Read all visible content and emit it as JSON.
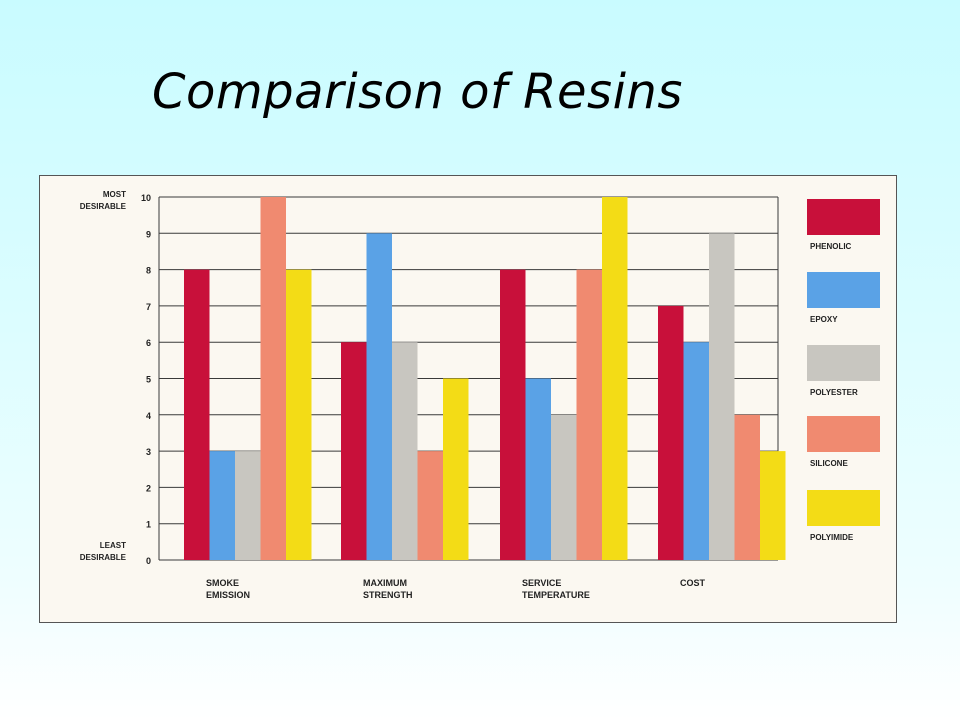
{
  "slide": {
    "title": "Comparison of Resins"
  },
  "chart_data": {
    "type": "bar",
    "categories": [
      [
        "SMOKE",
        "EMISSION"
      ],
      [
        "MAXIMUM",
        "STRENGTH"
      ],
      [
        "SERVICE",
        "TEMPERATURE"
      ],
      [
        "COST"
      ]
    ],
    "series": [
      {
        "name": "PHENOLIC",
        "color": "#c8103a",
        "values": [
          8,
          6,
          8,
          7
        ]
      },
      {
        "name": "EPOXY",
        "color": "#5aa2e6",
        "values": [
          3,
          9,
          5,
          6
        ]
      },
      {
        "name": "POLYESTER",
        "color": "#c8c6c0",
        "values": [
          3,
          6,
          4,
          9
        ]
      },
      {
        "name": "SILICONE",
        "color": "#f08a70",
        "values": [
          10,
          3,
          8,
          4
        ]
      },
      {
        "name": "POLYIMIDE",
        "color": "#f3dc16",
        "values": [
          8,
          5,
          10,
          3
        ]
      }
    ],
    "ylim": [
      0,
      10
    ],
    "yticks": [
      0,
      1,
      2,
      3,
      4,
      5,
      6,
      7,
      8,
      9,
      10
    ],
    "ytop_label": [
      "MOST",
      "DESIRABLE"
    ],
    "ybottom_label": [
      "LEAST",
      "DESIRABLE"
    ],
    "grid": true,
    "legend_placement": "right"
  }
}
